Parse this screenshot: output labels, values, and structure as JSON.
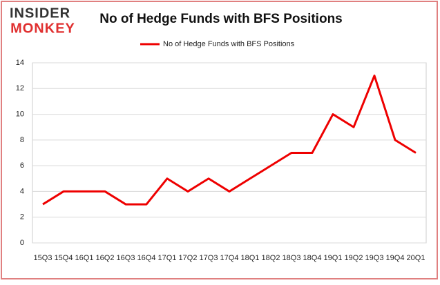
{
  "logo": {
    "top": "INSIDER",
    "bottom": "MONKEY"
  },
  "chart_data": {
    "type": "line",
    "title": "No of Hedge Funds with BFS Positions",
    "categories": [
      "15Q3",
      "15Q4",
      "16Q1",
      "16Q2",
      "16Q3",
      "16Q4",
      "17Q1",
      "17Q2",
      "17Q3",
      "17Q4",
      "18Q1",
      "18Q2",
      "18Q3",
      "18Q4",
      "19Q1",
      "19Q2",
      "19Q3",
      "19Q4",
      "20Q1"
    ],
    "series": [
      {
        "name": "No of Hedge Funds with BFS Positions",
        "color": "#ee0000",
        "values": [
          3,
          4,
          4,
          4,
          3,
          3,
          5,
          4,
          5,
          4,
          5,
          6,
          7,
          7,
          10,
          9,
          13,
          8,
          7
        ]
      }
    ],
    "ylim": [
      0,
      14
    ],
    "yticks": [
      0,
      2,
      4,
      6,
      8,
      10,
      12,
      14
    ],
    "grid": true,
    "legend": "top"
  }
}
